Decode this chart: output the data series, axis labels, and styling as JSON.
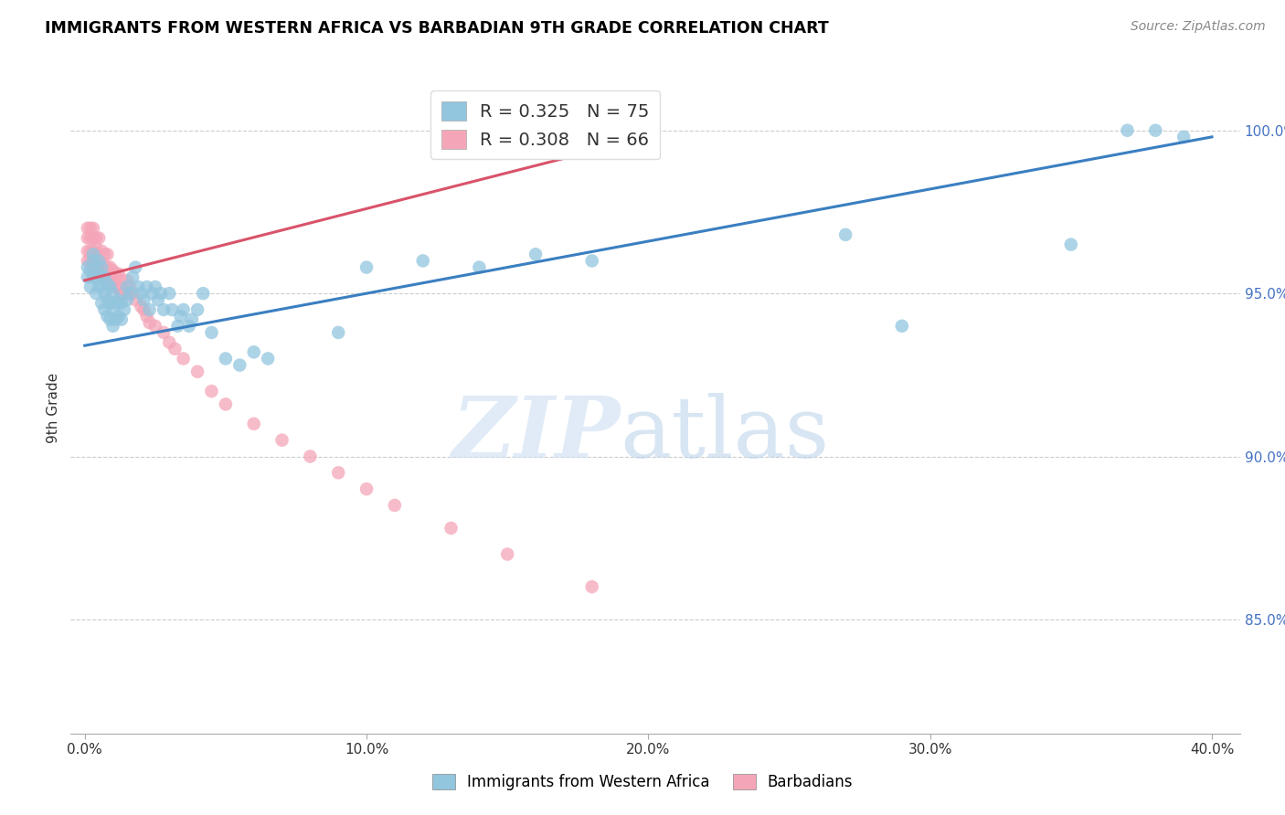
{
  "title": "IMMIGRANTS FROM WESTERN AFRICA VS BARBADIAN 9TH GRADE CORRELATION CHART",
  "source": "Source: ZipAtlas.com",
  "xlabel_ticks": [
    "0.0%",
    "",
    "",
    "",
    "",
    "10.0%",
    "",
    "",
    "",
    "",
    "20.0%",
    "",
    "",
    "",
    "",
    "30.0%",
    "",
    "",
    "",
    "",
    "40.0%"
  ],
  "xlabel_tick_vals": [
    0.0,
    0.02,
    0.04,
    0.06,
    0.08,
    0.1,
    0.12,
    0.14,
    0.16,
    0.18,
    0.2,
    0.22,
    0.24,
    0.26,
    0.28,
    0.3,
    0.32,
    0.34,
    0.36,
    0.38,
    0.4
  ],
  "ylabel_ticks": [
    "85.0%",
    "90.0%",
    "95.0%",
    "100.0%"
  ],
  "ylabel_tick_vals": [
    0.85,
    0.9,
    0.95,
    1.0
  ],
  "xlim": [
    -0.005,
    0.41
  ],
  "ylim": [
    0.815,
    1.015
  ],
  "blue_label": "Immigrants from Western Africa",
  "pink_label": "Barbadians",
  "blue_R": 0.325,
  "blue_N": 75,
  "pink_R": 0.308,
  "pink_N": 66,
  "blue_color": "#92c5de",
  "pink_color": "#f4a6b8",
  "blue_line_color": "#3a7fc1",
  "pink_line_color": "#d9536a",
  "blue_line_x": [
    0.0,
    0.4
  ],
  "blue_line_y": [
    0.934,
    0.998
  ],
  "pink_line_x": [
    0.0,
    0.2
  ],
  "pink_line_y": [
    0.954,
    0.998
  ],
  "blue_scatter_x": [
    0.001,
    0.001,
    0.002,
    0.002,
    0.003,
    0.003,
    0.003,
    0.004,
    0.004,
    0.005,
    0.005,
    0.005,
    0.006,
    0.006,
    0.006,
    0.007,
    0.007,
    0.007,
    0.008,
    0.008,
    0.008,
    0.009,
    0.009,
    0.009,
    0.01,
    0.01,
    0.01,
    0.011,
    0.011,
    0.012,
    0.012,
    0.013,
    0.013,
    0.014,
    0.015,
    0.015,
    0.016,
    0.017,
    0.018,
    0.019,
    0.02,
    0.021,
    0.022,
    0.023,
    0.024,
    0.025,
    0.026,
    0.027,
    0.028,
    0.03,
    0.031,
    0.033,
    0.034,
    0.035,
    0.037,
    0.038,
    0.04,
    0.042,
    0.045,
    0.05,
    0.055,
    0.06,
    0.065,
    0.09,
    0.1,
    0.12,
    0.14,
    0.16,
    0.18,
    0.27,
    0.29,
    0.35,
    0.37,
    0.38,
    0.39
  ],
  "blue_scatter_y": [
    0.955,
    0.958,
    0.952,
    0.957,
    0.955,
    0.96,
    0.962,
    0.95,
    0.955,
    0.952,
    0.956,
    0.96,
    0.947,
    0.952,
    0.958,
    0.945,
    0.95,
    0.955,
    0.943,
    0.948,
    0.953,
    0.942,
    0.947,
    0.952,
    0.94,
    0.945,
    0.95,
    0.942,
    0.947,
    0.943,
    0.948,
    0.942,
    0.947,
    0.945,
    0.948,
    0.952,
    0.95,
    0.955,
    0.958,
    0.952,
    0.95,
    0.948,
    0.952,
    0.945,
    0.95,
    0.952,
    0.948,
    0.95,
    0.945,
    0.95,
    0.945,
    0.94,
    0.943,
    0.945,
    0.94,
    0.942,
    0.945,
    0.95,
    0.938,
    0.93,
    0.928,
    0.932,
    0.93,
    0.938,
    0.958,
    0.96,
    0.958,
    0.962,
    0.96,
    0.968,
    0.94,
    0.965,
    1.0,
    1.0,
    0.998
  ],
  "pink_scatter_x": [
    0.001,
    0.001,
    0.001,
    0.001,
    0.002,
    0.002,
    0.002,
    0.002,
    0.003,
    0.003,
    0.003,
    0.003,
    0.003,
    0.004,
    0.004,
    0.004,
    0.004,
    0.005,
    0.005,
    0.005,
    0.006,
    0.006,
    0.006,
    0.007,
    0.007,
    0.007,
    0.008,
    0.008,
    0.008,
    0.009,
    0.009,
    0.01,
    0.01,
    0.011,
    0.011,
    0.012,
    0.012,
    0.013,
    0.013,
    0.014,
    0.015,
    0.015,
    0.016,
    0.017,
    0.018,
    0.02,
    0.021,
    0.022,
    0.023,
    0.025,
    0.028,
    0.03,
    0.032,
    0.035,
    0.04,
    0.045,
    0.05,
    0.06,
    0.07,
    0.08,
    0.09,
    0.1,
    0.11,
    0.13,
    0.15,
    0.18
  ],
  "pink_scatter_y": [
    0.96,
    0.963,
    0.967,
    0.97,
    0.96,
    0.963,
    0.967,
    0.97,
    0.958,
    0.96,
    0.963,
    0.967,
    0.97,
    0.958,
    0.961,
    0.964,
    0.967,
    0.958,
    0.962,
    0.967,
    0.957,
    0.96,
    0.963,
    0.955,
    0.958,
    0.962,
    0.955,
    0.958,
    0.962,
    0.955,
    0.958,
    0.953,
    0.957,
    0.952,
    0.956,
    0.952,
    0.956,
    0.95,
    0.954,
    0.95,
    0.95,
    0.954,
    0.952,
    0.95,
    0.948,
    0.946,
    0.945,
    0.943,
    0.941,
    0.94,
    0.938,
    0.935,
    0.933,
    0.93,
    0.926,
    0.92,
    0.916,
    0.91,
    0.905,
    0.9,
    0.895,
    0.89,
    0.885,
    0.878,
    0.87,
    0.86
  ]
}
